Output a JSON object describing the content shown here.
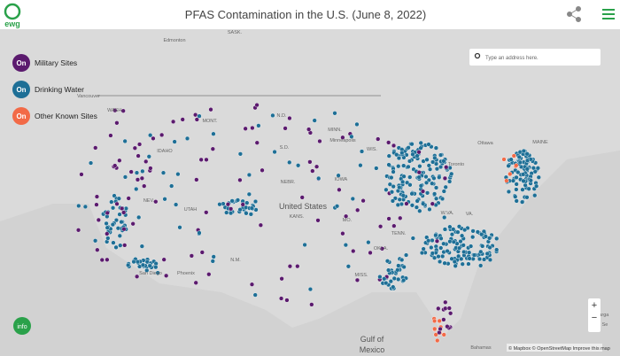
{
  "header": {
    "logo": "ewg",
    "title": "PFAS Contamination in the U.S. (June 8, 2022)"
  },
  "legend": [
    {
      "toggle": "On",
      "label": "Military Sites",
      "color": "#5b1a6e"
    },
    {
      "toggle": "On",
      "label": "Drinking Water",
      "color": "#1e6f96"
    },
    {
      "toggle": "On",
      "label": "Other Known Sites",
      "color": "#f26a47"
    }
  ],
  "search": {
    "placeholder": "Type an address here."
  },
  "info_button": "info",
  "zoom": [
    "+",
    "−"
  ],
  "attribution": "© Mapbox © OpenStreetMap Improve this map",
  "map_labels": [
    "Edmonton",
    "SASK.",
    "WASH.",
    "MONT.",
    "N.D.",
    "MINN.",
    "Vancouver",
    "Ottawa",
    "IDAHO",
    "S.D.",
    "WIS.",
    "Minneapolis",
    "Toronto",
    "NEV.",
    "UTAH",
    "NEBR.",
    "IOWA",
    "United States",
    "KANS.",
    "MO.",
    "W.VA.",
    "VA.",
    "N.M.",
    "OKLA.",
    "TENN.",
    "MAINE",
    "MISS.",
    "San Diego",
    "Phoenix",
    "Gulf of",
    "Mexico",
    "Bahamas",
    "Sarga",
    "Se"
  ]
}
